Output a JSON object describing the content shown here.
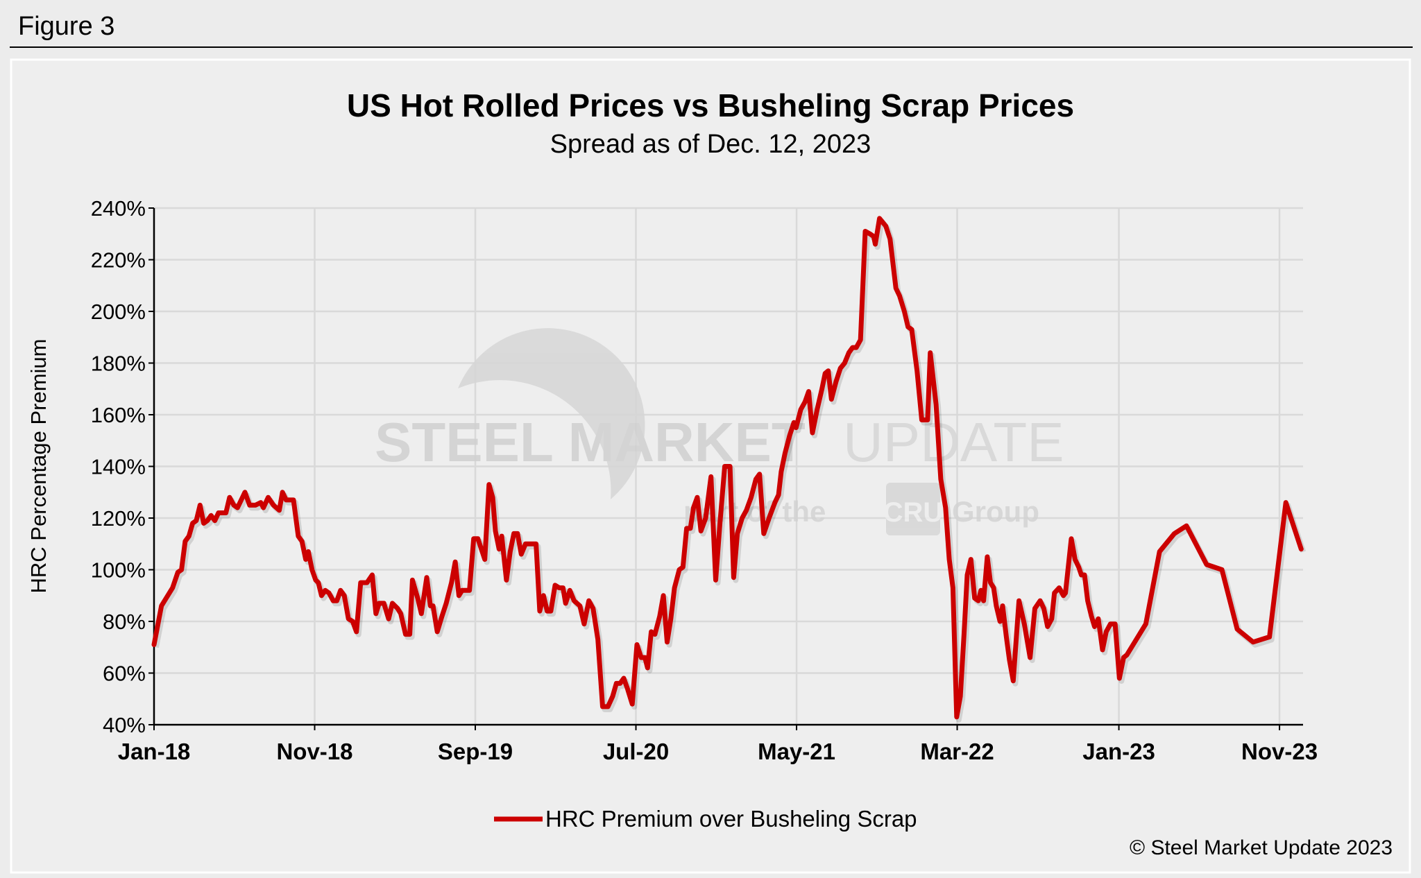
{
  "figure_label": "Figure 3",
  "copyright": "© Steel Market Update 2023",
  "watermark": {
    "line1_bold": "STEEL MARKET",
    "line1_light": "UPDATE",
    "line2_pre": "part of the",
    "line2_badge": "CRU",
    "line2_post": "Group"
  },
  "colors": {
    "series": "#cc0000",
    "background": "#eeeeee",
    "grid": "#d9d9d9"
  },
  "chart_data": {
    "type": "line",
    "title": "US Hot Rolled Prices vs Busheling Scrap Prices",
    "subtitle": "Spread as of Dec. 12, 2023",
    "xlabel": "",
    "ylabel": "HRC Percentage Premium",
    "ylim": [
      40,
      240
    ],
    "yticks": [
      "40%",
      "60%",
      "80%",
      "100%",
      "120%",
      "140%",
      "160%",
      "180%",
      "200%",
      "220%",
      "240%"
    ],
    "xticks": [
      {
        "label": "Jan-18",
        "date": "2018-01-01"
      },
      {
        "label": "Nov-18",
        "date": "2018-11-01"
      },
      {
        "label": "Sep-19",
        "date": "2019-09-01"
      },
      {
        "label": "Jul-20",
        "date": "2020-07-01"
      },
      {
        "label": "May-21",
        "date": "2021-05-01"
      },
      {
        "label": "Mar-22",
        "date": "2022-03-01"
      },
      {
        "label": "Jan-23",
        "date": "2023-01-01"
      },
      {
        "label": "Nov-23",
        "date": "2023-11-01"
      }
    ],
    "grid": true,
    "legend_position": "bottom",
    "series": [
      {
        "name": "HRC Premium over Busheling Scrap",
        "points": [
          [
            "2018-01-01",
            71
          ],
          [
            "2018-01-15",
            86
          ],
          [
            "2018-02-05",
            93
          ],
          [
            "2018-02-15",
            99
          ],
          [
            "2018-02-22",
            100
          ],
          [
            "2018-03-01",
            111
          ],
          [
            "2018-03-08",
            113
          ],
          [
            "2018-03-15",
            118
          ],
          [
            "2018-03-22",
            119
          ],
          [
            "2018-03-29",
            125
          ],
          [
            "2018-04-05",
            118
          ],
          [
            "2018-04-12",
            119
          ],
          [
            "2018-04-19",
            121
          ],
          [
            "2018-04-26",
            119
          ],
          [
            "2018-05-03",
            122
          ],
          [
            "2018-05-17",
            122
          ],
          [
            "2018-05-24",
            128
          ],
          [
            "2018-06-01",
            125
          ],
          [
            "2018-06-08",
            124
          ],
          [
            "2018-06-15",
            127
          ],
          [
            "2018-06-22",
            130
          ],
          [
            "2018-07-01",
            125
          ],
          [
            "2018-07-12",
            125
          ],
          [
            "2018-07-22",
            126
          ],
          [
            "2018-07-27",
            124
          ],
          [
            "2018-08-05",
            128
          ],
          [
            "2018-08-15",
            125
          ],
          [
            "2018-08-26",
            123
          ],
          [
            "2018-09-01",
            130
          ],
          [
            "2018-09-08",
            127
          ],
          [
            "2018-09-22",
            127
          ],
          [
            "2018-10-01",
            113
          ],
          [
            "2018-10-08",
            111
          ],
          [
            "2018-10-15",
            104
          ],
          [
            "2018-10-20",
            107
          ],
          [
            "2018-10-27",
            100
          ],
          [
            "2018-11-03",
            96
          ],
          [
            "2018-11-08",
            95
          ],
          [
            "2018-11-14",
            90
          ],
          [
            "2018-11-21",
            92
          ],
          [
            "2018-11-28",
            91
          ],
          [
            "2018-12-06",
            88
          ],
          [
            "2018-12-13",
            88
          ],
          [
            "2018-12-20",
            92
          ],
          [
            "2018-12-27",
            90
          ],
          [
            "2019-01-04",
            81
          ],
          [
            "2019-01-12",
            80
          ],
          [
            "2019-01-19",
            76
          ],
          [
            "2019-01-27",
            95
          ],
          [
            "2019-02-08",
            95
          ],
          [
            "2019-02-18",
            98
          ],
          [
            "2019-02-25",
            83
          ],
          [
            "2019-03-03",
            87
          ],
          [
            "2019-03-12",
            87
          ],
          [
            "2019-03-21",
            81
          ],
          [
            "2019-03-28",
            87
          ],
          [
            "2019-04-07",
            85
          ],
          [
            "2019-04-13",
            83
          ],
          [
            "2019-04-22",
            75
          ],
          [
            "2019-04-30",
            75
          ],
          [
            "2019-05-05",
            96
          ],
          [
            "2019-05-15",
            89
          ],
          [
            "2019-05-22",
            83
          ],
          [
            "2019-06-01",
            97
          ],
          [
            "2019-06-08",
            86
          ],
          [
            "2019-06-13",
            86
          ],
          [
            "2019-06-21",
            76
          ],
          [
            "2019-06-30",
            82
          ],
          [
            "2019-07-08",
            87
          ],
          [
            "2019-07-18",
            95
          ],
          [
            "2019-07-25",
            103
          ],
          [
            "2019-08-01",
            90
          ],
          [
            "2019-08-07",
            92
          ],
          [
            "2019-08-21",
            92
          ],
          [
            "2019-08-29",
            112
          ],
          [
            "2019-09-06",
            112
          ],
          [
            "2019-09-19",
            104
          ],
          [
            "2019-09-27",
            133
          ],
          [
            "2019-10-04",
            128
          ],
          [
            "2019-10-09",
            115
          ],
          [
            "2019-10-16",
            108
          ],
          [
            "2019-10-21",
            113
          ],
          [
            "2019-10-30",
            96
          ],
          [
            "2019-11-06",
            107
          ],
          [
            "2019-11-13",
            114
          ],
          [
            "2019-11-20",
            114
          ],
          [
            "2019-11-27",
            106
          ],
          [
            "2019-12-05",
            110
          ],
          [
            "2019-12-15",
            110
          ],
          [
            "2019-12-25",
            110
          ],
          [
            "2020-01-01",
            84
          ],
          [
            "2020-01-08",
            90
          ],
          [
            "2020-01-15",
            84
          ],
          [
            "2020-01-22",
            84
          ],
          [
            "2020-01-30",
            94
          ],
          [
            "2020-02-07",
            93
          ],
          [
            "2020-02-14",
            93
          ],
          [
            "2020-02-19",
            87
          ],
          [
            "2020-02-27",
            92
          ],
          [
            "2020-03-06",
            88
          ],
          [
            "2020-03-17",
            86
          ],
          [
            "2020-03-25",
            79
          ],
          [
            "2020-04-03",
            88
          ],
          [
            "2020-04-11",
            85
          ],
          [
            "2020-04-20",
            73
          ],
          [
            "2020-04-29",
            47
          ],
          [
            "2020-05-09",
            47
          ],
          [
            "2020-05-18",
            51
          ],
          [
            "2020-05-25",
            56
          ],
          [
            "2020-06-01",
            56
          ],
          [
            "2020-06-08",
            58
          ],
          [
            "2020-06-15",
            54
          ],
          [
            "2020-06-24",
            48
          ],
          [
            "2020-07-03",
            71
          ],
          [
            "2020-07-11",
            66
          ],
          [
            "2020-07-18",
            66
          ],
          [
            "2020-07-23",
            62
          ],
          [
            "2020-07-30",
            76
          ],
          [
            "2020-08-06",
            75
          ],
          [
            "2020-08-15",
            82
          ],
          [
            "2020-08-22",
            90
          ],
          [
            "2020-08-29",
            72
          ],
          [
            "2020-09-05",
            81
          ],
          [
            "2020-09-12",
            93
          ],
          [
            "2020-09-21",
            100
          ],
          [
            "2020-09-28",
            101
          ],
          [
            "2020-10-05",
            116
          ],
          [
            "2020-10-12",
            116
          ],
          [
            "2020-10-18",
            124
          ],
          [
            "2020-10-25",
            128
          ],
          [
            "2020-11-01",
            115
          ],
          [
            "2020-11-10",
            120
          ],
          [
            "2020-11-20",
            136
          ],
          [
            "2020-11-29",
            96
          ],
          [
            "2020-12-07",
            118
          ],
          [
            "2020-12-16",
            140
          ],
          [
            "2020-12-26",
            140
          ],
          [
            "2021-01-02",
            97
          ],
          [
            "2021-01-09",
            114
          ],
          [
            "2021-01-18",
            120
          ],
          [
            "2021-01-26",
            123
          ],
          [
            "2021-02-04",
            128
          ],
          [
            "2021-02-13",
            135
          ],
          [
            "2021-02-20",
            137
          ],
          [
            "2021-02-28",
            114
          ],
          [
            "2021-03-10",
            120
          ],
          [
            "2021-03-21",
            126
          ],
          [
            "2021-03-28",
            129
          ],
          [
            "2021-04-02",
            138
          ],
          [
            "2021-04-09",
            145
          ],
          [
            "2021-04-18",
            152
          ],
          [
            "2021-04-26",
            157
          ],
          [
            "2021-04-30",
            155
          ],
          [
            "2021-05-09",
            162
          ],
          [
            "2021-05-17",
            165
          ],
          [
            "2021-05-24",
            169
          ],
          [
            "2021-05-31",
            153
          ],
          [
            "2021-06-09",
            162
          ],
          [
            "2021-06-18",
            170
          ],
          [
            "2021-06-24",
            176
          ],
          [
            "2021-06-30",
            177
          ],
          [
            "2021-07-06",
            166
          ],
          [
            "2021-07-15",
            173
          ],
          [
            "2021-07-23",
            178
          ],
          [
            "2021-07-31",
            180
          ],
          [
            "2021-08-08",
            184
          ],
          [
            "2021-08-15",
            186
          ],
          [
            "2021-08-22",
            186
          ],
          [
            "2021-08-30",
            189
          ],
          [
            "2021-09-08",
            231
          ],
          [
            "2021-09-17",
            230
          ],
          [
            "2021-09-24",
            229
          ],
          [
            "2021-09-27",
            226
          ],
          [
            "2021-10-05",
            236
          ],
          [
            "2021-10-17",
            233
          ],
          [
            "2021-10-25",
            228
          ],
          [
            "2021-11-05",
            209
          ],
          [
            "2021-11-12",
            206
          ],
          [
            "2021-11-21",
            200
          ],
          [
            "2021-11-28",
            194
          ],
          [
            "2021-12-05",
            193
          ],
          [
            "2021-12-15",
            177
          ],
          [
            "2021-12-24",
            158
          ],
          [
            "2022-01-04",
            158
          ],
          [
            "2022-01-09",
            184
          ],
          [
            "2022-01-20",
            164
          ],
          [
            "2022-01-29",
            135
          ],
          [
            "2022-02-07",
            124
          ],
          [
            "2022-02-14",
            104
          ],
          [
            "2022-02-21",
            93
          ],
          [
            "2022-02-28",
            43
          ],
          [
            "2022-03-07",
            51
          ],
          [
            "2022-03-14",
            75
          ],
          [
            "2022-03-20",
            98
          ],
          [
            "2022-03-27",
            104
          ],
          [
            "2022-04-03",
            89
          ],
          [
            "2022-04-10",
            88
          ],
          [
            "2022-04-15",
            92
          ],
          [
            "2022-04-20",
            88
          ],
          [
            "2022-04-27",
            105
          ],
          [
            "2022-05-03",
            95
          ],
          [
            "2022-05-09",
            93
          ],
          [
            "2022-05-14",
            86
          ],
          [
            "2022-05-21",
            80
          ],
          [
            "2022-05-26",
            86
          ],
          [
            "2022-06-02",
            74
          ],
          [
            "2022-06-08",
            65
          ],
          [
            "2022-06-15",
            57
          ],
          [
            "2022-06-26",
            88
          ],
          [
            "2022-07-06",
            79
          ],
          [
            "2022-07-17",
            66
          ],
          [
            "2022-07-26",
            85
          ],
          [
            "2022-08-05",
            88
          ],
          [
            "2022-08-12",
            85
          ],
          [
            "2022-08-19",
            78
          ],
          [
            "2022-08-27",
            81
          ],
          [
            "2022-09-01",
            91
          ],
          [
            "2022-09-10",
            93
          ],
          [
            "2022-09-18",
            90
          ],
          [
            "2022-09-22",
            91
          ],
          [
            "2022-10-03",
            112
          ],
          [
            "2022-10-10",
            104
          ],
          [
            "2022-10-17",
            101
          ],
          [
            "2022-10-22",
            98
          ],
          [
            "2022-10-28",
            98
          ],
          [
            "2022-11-03",
            88
          ],
          [
            "2022-11-10",
            82
          ],
          [
            "2022-11-16",
            78
          ],
          [
            "2022-11-23",
            81
          ],
          [
            "2022-12-01",
            69
          ],
          [
            "2022-12-08",
            76
          ],
          [
            "2022-12-16",
            79
          ],
          [
            "2022-12-25",
            79
          ],
          [
            "2023-01-02",
            58
          ],
          [
            "2023-01-10",
            66
          ],
          [
            "2023-01-16",
            67
          ],
          [
            "2023-02-21",
            79
          ],
          [
            "2023-03-19",
            107
          ],
          [
            "2023-04-16",
            114
          ],
          [
            "2023-05-09",
            117
          ],
          [
            "2023-06-16",
            102
          ],
          [
            "2023-07-15",
            100
          ],
          [
            "2023-08-13",
            77
          ],
          [
            "2023-09-12",
            72
          ],
          [
            "2023-10-13",
            74
          ],
          [
            "2023-11-13",
            126
          ],
          [
            "2023-12-12",
            108
          ]
        ]
      }
    ]
  }
}
